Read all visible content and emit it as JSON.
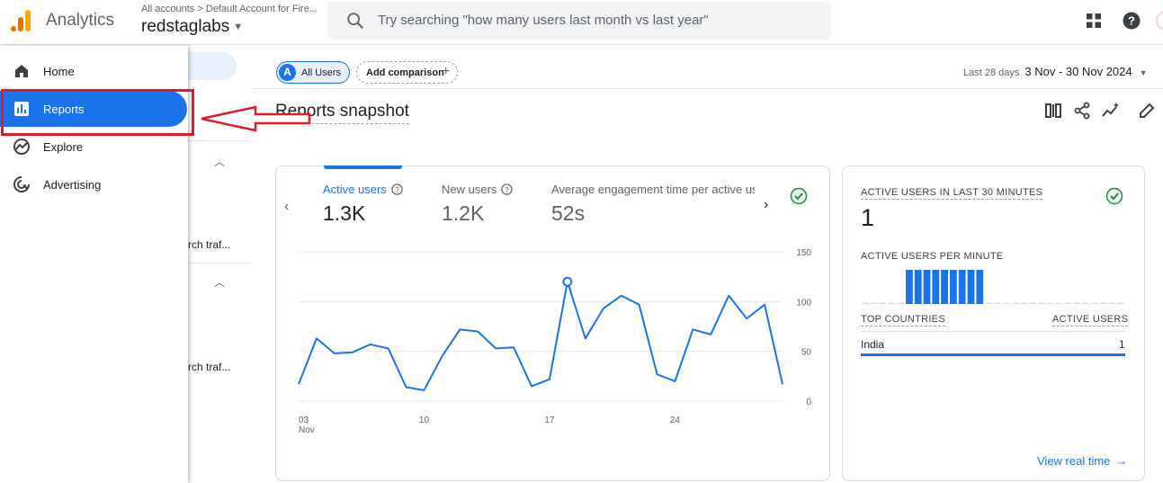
{
  "header": {
    "app_name": "Analytics",
    "breadcrumb_root": "All accounts",
    "breadcrumb_sep": ">",
    "breadcrumb_account": "Default Account for Fire...",
    "property": "redstaglabs",
    "search_placeholder": "Try searching \"how many users last month vs last year\""
  },
  "sidebar": {
    "items": [
      {
        "label": "Home",
        "icon": "home-icon"
      },
      {
        "label": "Reports",
        "icon": "reports-icon"
      },
      {
        "label": "Explore",
        "icon": "explore-icon"
      },
      {
        "label": "Advertising",
        "icon": "advertising-icon"
      }
    ],
    "active": "Reports",
    "partial_text_1": "rch traf...",
    "partial_text_2": "rch traf..."
  },
  "toolbar": {
    "segment_badge": "A",
    "segment": "All Users",
    "compare": "Add comparison",
    "date_label": "Last 28 days",
    "date_value": "3 Nov - 30 Nov 2024"
  },
  "page_title": "Reports snapshot",
  "metrics": [
    {
      "label": "Active users",
      "value": "1.3K"
    },
    {
      "label": "New users",
      "value": "1.2K"
    },
    {
      "label": "Average engagement time per active us",
      "value": "52s"
    }
  ],
  "chart_data": {
    "type": "line",
    "x_tick_labels": [
      "03\nNov",
      "10",
      "17",
      "24"
    ],
    "y_tick_labels": [
      "150",
      "100",
      "50",
      "0"
    ],
    "ylim": [
      0,
      150
    ],
    "xlim": [
      3,
      30
    ],
    "x": [
      3,
      4,
      5,
      6,
      7,
      8,
      9,
      10,
      11,
      12,
      13,
      14,
      15,
      16,
      17,
      18,
      19,
      20,
      21,
      22,
      23,
      24,
      25,
      26,
      27,
      28,
      29,
      30
    ],
    "values": [
      17,
      63,
      48,
      49,
      57,
      53,
      14,
      11,
      45,
      72,
      70,
      53,
      54,
      15,
      22,
      120,
      63,
      93,
      106,
      97,
      27,
      20,
      72,
      67,
      106,
      83,
      97,
      17
    ],
    "highlight_x": 18,
    "color": "#1a73e8"
  },
  "realtime": {
    "title": "ACTIVE USERS IN LAST 30 MINUTES",
    "value": "1",
    "per_minute_label": "ACTIVE USERS PER MINUTE",
    "per_minute": [
      0,
      0,
      0,
      0,
      0,
      1,
      1,
      1,
      1,
      1,
      1,
      1,
      1,
      1,
      0,
      0,
      0,
      0,
      0,
      0,
      0,
      0,
      0,
      0,
      0,
      0,
      0,
      0,
      0,
      0
    ],
    "col_country": "TOP COUNTRIES",
    "col_users": "ACTIVE USERS",
    "rows": [
      {
        "country": "India",
        "users": "1"
      }
    ],
    "link": "View real time"
  }
}
